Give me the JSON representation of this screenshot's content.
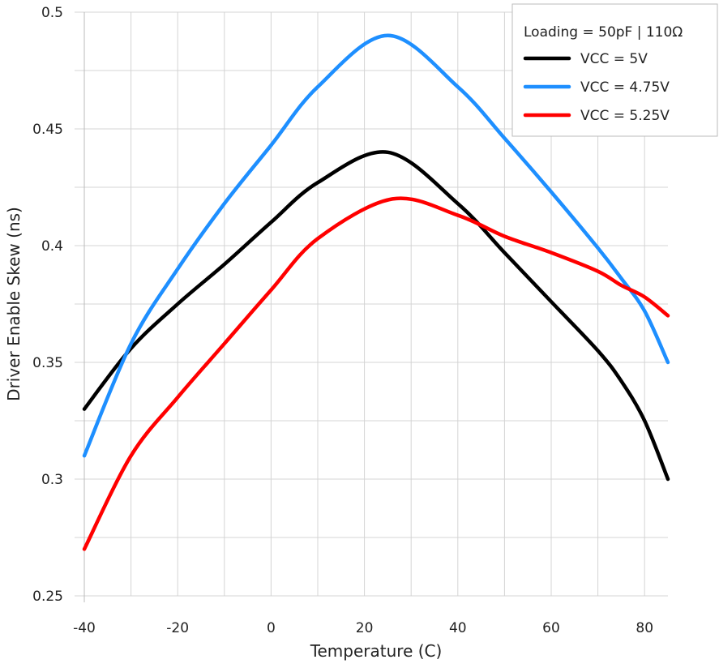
{
  "chart_data": {
    "type": "line",
    "title": "",
    "xlabel": "Temperature (C)",
    "ylabel": "Driver Enable Skew (ns)",
    "xlim": [
      -40,
      85
    ],
    "ylim": [
      0.25,
      0.5
    ],
    "x_ticks": [
      -40,
      -20,
      0,
      20,
      40,
      60,
      80
    ],
    "x_tick_labels": [
      "-40",
      "-20",
      "0",
      "20",
      "40",
      "60",
      "80"
    ],
    "y_ticks": [
      0.25,
      0.3,
      0.35,
      0.4,
      0.45,
      0.5
    ],
    "y_tick_labels": [
      "0.25",
      "0.3",
      "0.35",
      "0.4",
      "0.45",
      "0.5"
    ],
    "grid": true,
    "legend": {
      "position": "top-right",
      "title": "Loading =  50pF | 110Ω"
    },
    "series": [
      {
        "name": "VCC = 5V",
        "color": "#000000",
        "x": [
          -40,
          -30,
          -20,
          -10,
          0,
          10,
          25,
          40,
          50,
          60,
          70,
          75,
          80,
          85
        ],
        "y": [
          0.33,
          0.356,
          0.375,
          0.392,
          0.41,
          0.427,
          0.44,
          0.418,
          0.397,
          0.376,
          0.355,
          0.342,
          0.325,
          0.3
        ]
      },
      {
        "name": "VCC = 4.75V",
        "color": "#1e8fff",
        "x": [
          -40,
          -30,
          -20,
          -10,
          0,
          10,
          25,
          40,
          50,
          60,
          70,
          75,
          80,
          85
        ],
        "y": [
          0.31,
          0.358,
          0.39,
          0.418,
          0.443,
          0.468,
          0.49,
          0.468,
          0.446,
          0.423,
          0.399,
          0.386,
          0.372,
          0.35
        ]
      },
      {
        "name": "VCC = 5.25V",
        "color": "#ff0000",
        "x": [
          -40,
          -30,
          -20,
          -10,
          0,
          10,
          26,
          40,
          50,
          60,
          70,
          75,
          80,
          85
        ],
        "y": [
          0.27,
          0.31,
          0.335,
          0.358,
          0.381,
          0.403,
          0.42,
          0.413,
          0.404,
          0.397,
          0.389,
          0.383,
          0.378,
          0.37
        ]
      }
    ]
  }
}
